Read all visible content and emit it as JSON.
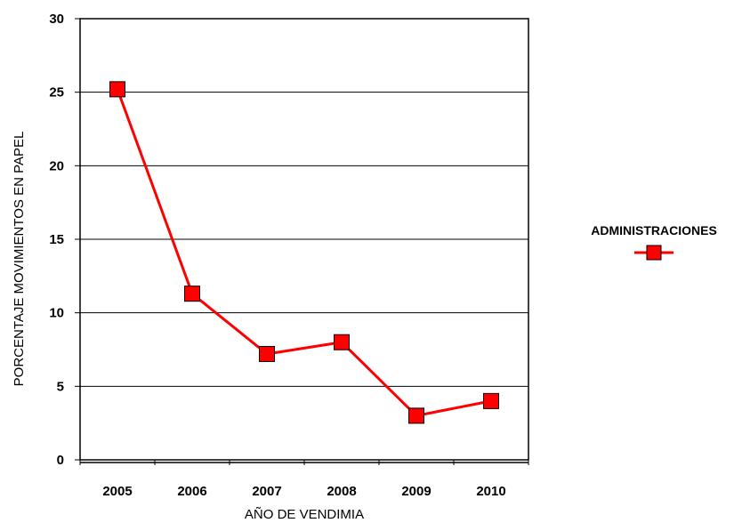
{
  "chart_data": {
    "type": "line",
    "title": "",
    "xlabel": "AÑO DE VENDIMIA",
    "ylabel": "PORCENTAJE MOVIMIENTOS EN PAPEL",
    "categories": [
      "2005",
      "2006",
      "2007",
      "2008",
      "2009",
      "2010"
    ],
    "series": [
      {
        "name": "ADMINISTRACIONES",
        "values": [
          25.2,
          11.3,
          7.2,
          8.0,
          3.0,
          4.0
        ],
        "color": "#ff0000",
        "marker": "square",
        "marker_color": "#ff0000",
        "marker_edge_color": "#000000"
      }
    ],
    "ylim": [
      0,
      30
    ],
    "yticks": [
      0,
      5,
      10,
      15,
      20,
      25,
      30
    ],
    "ytick_labels": [
      "0",
      "5",
      "10",
      "15",
      "20",
      "25",
      "30"
    ],
    "grid": "horizontal",
    "legend_position": "right"
  }
}
